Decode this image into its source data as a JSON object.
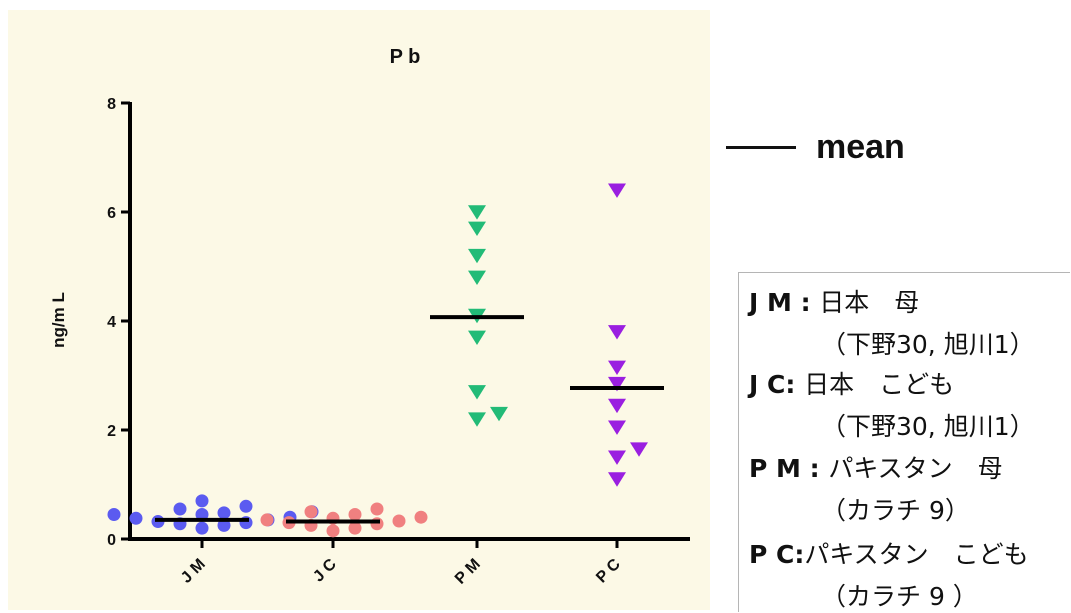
{
  "chart_data": {
    "type": "scatter",
    "title": "P b",
    "ylabel": "ng/m L",
    "ylim": [
      0,
      8
    ],
    "y_ticks": [
      "0",
      "2",
      "4",
      "6",
      "8"
    ],
    "categories": [
      "J M",
      "J C",
      "P M",
      "P C"
    ],
    "grid": false,
    "series": [
      {
        "category": "J M",
        "marker": "circle",
        "color": "#5b5bf0",
        "values": [
          0.2,
          0.25,
          0.28,
          0.3,
          0.32,
          0.35,
          0.38,
          0.4,
          0.45,
          0.45,
          0.48,
          0.5,
          0.55,
          0.6,
          0.7
        ],
        "mean": 0.35
      },
      {
        "category": "J C",
        "marker": "circle",
        "color": "#f08080",
        "values": [
          0.15,
          0.2,
          0.25,
          0.28,
          0.3,
          0.33,
          0.35,
          0.38,
          0.4,
          0.45,
          0.5,
          0.55
        ],
        "mean": 0.32
      },
      {
        "category": "P M",
        "marker": "triangle-down",
        "color": "#22bb77",
        "values": [
          6.0,
          5.7,
          5.2,
          4.8,
          4.1,
          3.7,
          2.7,
          2.3,
          2.2
        ],
        "mean": 4.07
      },
      {
        "category": "P C",
        "marker": "triangle-down",
        "color": "#9a1fe0",
        "values": [
          6.4,
          3.8,
          3.15,
          2.85,
          2.45,
          2.05,
          1.65,
          1.5,
          1.1
        ],
        "mean": 2.77
      }
    ]
  },
  "legend": {
    "mean_label": "mean"
  },
  "groups": [
    {
      "code": "J M",
      "sep": " : ",
      "name": "日本　母",
      "detail": "（下野30, 旭川1）"
    },
    {
      "code": "J C",
      "sep": ": ",
      "name": "日本　こども",
      "detail": "（下野30, 旭川1）"
    },
    {
      "code": "P M",
      "sep": " : ",
      "name": "パキスタン　母",
      "detail": "（カラチ 9）"
    },
    {
      "code": "P C",
      "sep": ":",
      "name": "パキスタン　こども",
      "detail": "（カラチ 9 ）"
    }
  ]
}
